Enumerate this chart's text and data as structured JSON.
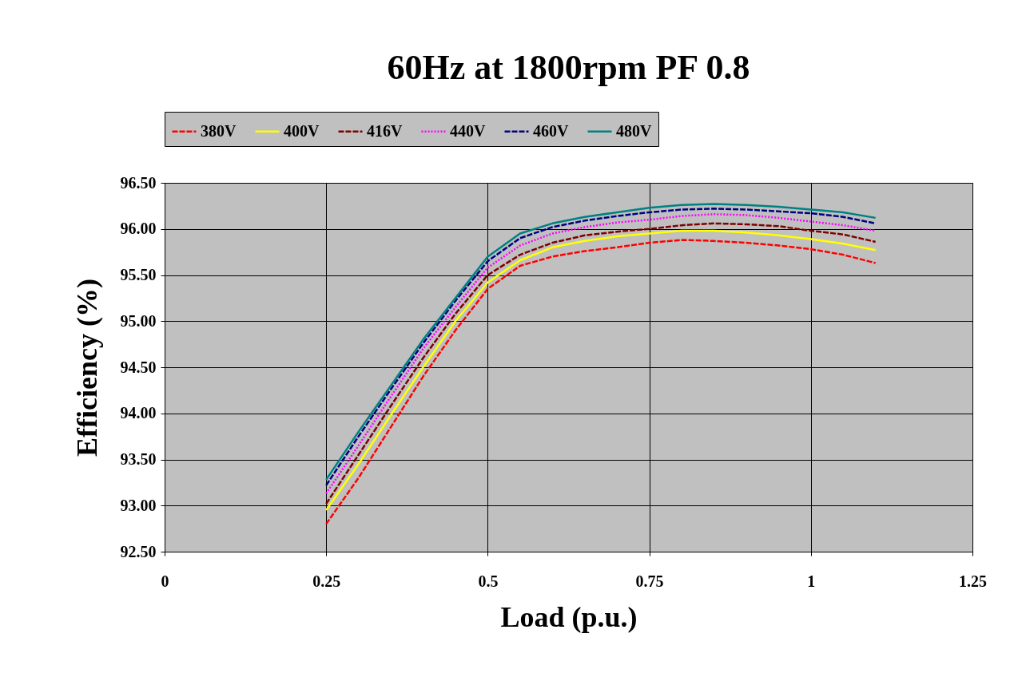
{
  "chart_data": {
    "type": "line",
    "title": "60Hz at 1800rpm PF 0.8",
    "xlabel": "Load (p.u.)",
    "ylabel": "Efficiency (%)",
    "x": [
      0.25,
      0.3,
      0.35,
      0.4,
      0.45,
      0.5,
      0.55,
      0.6,
      0.65,
      0.7,
      0.75,
      0.8,
      0.85,
      0.9,
      0.95,
      1.0,
      1.05,
      1.1
    ],
    "series": [
      {
        "name": "380V",
        "color": "#ff0000",
        "line_style": "dashed",
        "values": [
          92.8,
          93.3,
          93.85,
          94.4,
          94.9,
          95.35,
          95.6,
          95.7,
          95.76,
          95.8,
          95.85,
          95.88,
          95.87,
          95.85,
          95.82,
          95.78,
          95.72,
          95.63
        ]
      },
      {
        "name": "400V",
        "color": "#ffff00",
        "line_style": "solid",
        "values": [
          92.95,
          93.45,
          93.98,
          94.5,
          95.0,
          95.42,
          95.66,
          95.8,
          95.87,
          95.92,
          95.95,
          95.98,
          95.98,
          95.96,
          95.93,
          95.89,
          95.84,
          95.77
        ]
      },
      {
        "name": "416V",
        "color": "#800000",
        "line_style": "dashed",
        "values": [
          93.02,
          93.55,
          94.08,
          94.6,
          95.08,
          95.5,
          95.72,
          95.85,
          95.93,
          95.97,
          96.0,
          96.04,
          96.06,
          96.05,
          96.03,
          95.98,
          95.94,
          95.86
        ]
      },
      {
        "name": "440V",
        "color": "#ff00ff",
        "line_style": "dotted",
        "values": [
          93.13,
          93.65,
          94.18,
          94.7,
          95.15,
          95.58,
          95.82,
          95.95,
          96.02,
          96.07,
          96.1,
          96.14,
          96.16,
          96.15,
          96.12,
          96.08,
          96.04,
          95.98
        ]
      },
      {
        "name": "460V",
        "color": "#000080",
        "line_style": "dashed",
        "values": [
          93.22,
          93.75,
          94.26,
          94.76,
          95.22,
          95.65,
          95.9,
          96.02,
          96.09,
          96.14,
          96.18,
          96.21,
          96.22,
          96.21,
          96.19,
          96.17,
          96.13,
          96.06
        ]
      },
      {
        "name": "480V",
        "color": "#008080",
        "line_style": "solid",
        "values": [
          93.28,
          93.8,
          94.3,
          94.8,
          95.25,
          95.7,
          95.95,
          96.06,
          96.13,
          96.18,
          96.23,
          96.26,
          96.27,
          96.26,
          96.24,
          96.21,
          96.18,
          96.12
        ]
      }
    ],
    "xlim": [
      0,
      1.25
    ],
    "xticks": [
      0,
      0.25,
      0.5,
      0.75,
      1,
      1.25
    ],
    "ylim": [
      92.5,
      96.5
    ],
    "yticks": [
      {
        "value": 92.5,
        "label": "92.50"
      },
      {
        "value": 93,
        "label": "93.00"
      },
      {
        "value": 93.5,
        "label": "93.50"
      },
      {
        "value": 94,
        "label": "94.00"
      },
      {
        "value": 94.5,
        "label": "94.50"
      },
      {
        "value": 95,
        "label": "95.00"
      },
      {
        "value": 95.5,
        "label": "95.50"
      },
      {
        "value": 96,
        "label": "96.00"
      },
      {
        "value": 96.5,
        "label": "96.50"
      }
    ],
    "grid": true,
    "legend": "top",
    "marker": "none"
  }
}
